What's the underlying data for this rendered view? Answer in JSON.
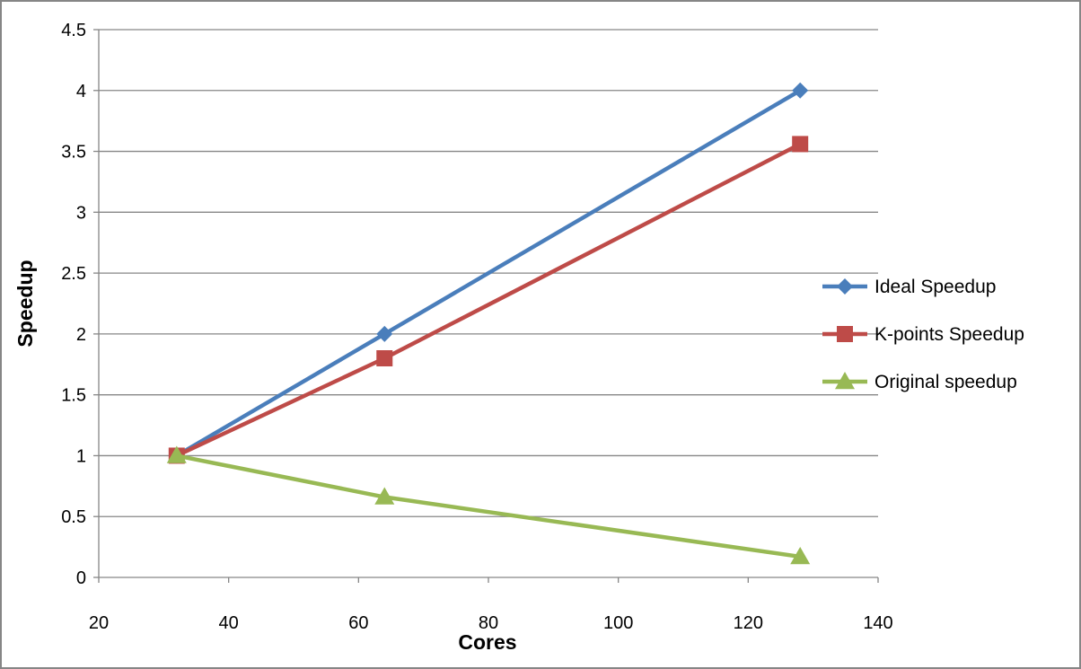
{
  "chart_data": {
    "type": "line",
    "title": "",
    "xlabel": "Cores",
    "ylabel": "Speedup",
    "xlim": [
      20,
      140
    ],
    "ylim": [
      0,
      4.5
    ],
    "xticks": [
      20,
      40,
      60,
      80,
      100,
      120,
      140
    ],
    "yticks": [
      0,
      0.5,
      1,
      1.5,
      2,
      2.5,
      3,
      3.5,
      4,
      4.5
    ],
    "xtick_labels": [
      "20",
      "40",
      "60",
      "80",
      "100",
      "120",
      "140"
    ],
    "ytick_labels": [
      "0",
      "0.5",
      "1",
      "1.5",
      "2",
      "2.5",
      "3",
      "3.5",
      "4",
      "4.5"
    ],
    "grid": "horizontal",
    "legend_position": "right",
    "series": [
      {
        "name": "Ideal Speedup",
        "x": [
          32,
          64,
          128
        ],
        "values": [
          1,
          2,
          4
        ],
        "color": "#4a7ebb",
        "marker": "diamond"
      },
      {
        "name": "K-points Speedup",
        "x": [
          32,
          64,
          128
        ],
        "values": [
          1,
          1.8,
          3.56
        ],
        "color": "#be4b48",
        "marker": "square"
      },
      {
        "name": "Original speedup",
        "x": [
          32,
          64,
          128
        ],
        "values": [
          1,
          0.66,
          0.17
        ],
        "color": "#98b954",
        "marker": "triangle"
      }
    ]
  }
}
